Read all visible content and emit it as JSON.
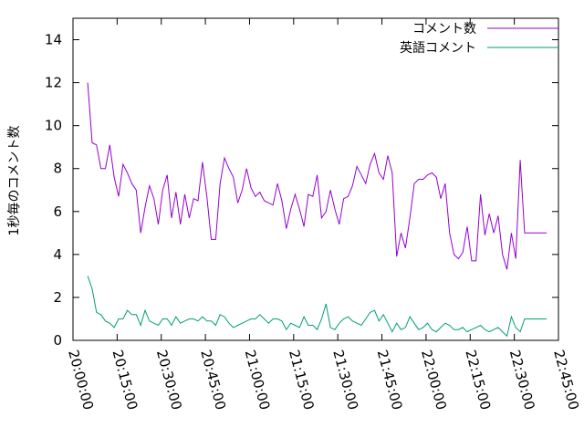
{
  "chart_data": {
    "type": "line",
    "title": "",
    "xlabel": "",
    "ylabel": "1秒毎のコメント数",
    "ylim": [
      0,
      15
    ],
    "yticks": [
      0,
      2,
      4,
      6,
      8,
      10,
      12,
      14
    ],
    "x_range": [
      "20:00:00",
      "22:45:00"
    ],
    "x_ticks": [
      "20:00:00",
      "20:15:00",
      "20:30:00",
      "20:45:00",
      "21:00:00",
      "21:15:00",
      "21:30:00",
      "21:45:00",
      "22:00:00",
      "22:15:00",
      "22:30:00",
      "22:45:00"
    ],
    "grid": false,
    "legend_position": "top-right",
    "x": [
      "20:05:00",
      "20:06:30",
      "20:08:00",
      "20:09:30",
      "20:11:00",
      "20:12:30",
      "20:14:00",
      "20:15:30",
      "20:17:00",
      "20:18:30",
      "20:20:00",
      "20:21:30",
      "20:23:00",
      "20:24:30",
      "20:26:00",
      "20:27:30",
      "20:29:00",
      "20:30:30",
      "20:32:00",
      "20:33:30",
      "20:35:00",
      "20:36:30",
      "20:38:00",
      "20:39:30",
      "20:41:00",
      "20:42:30",
      "20:44:00",
      "20:45:30",
      "20:47:00",
      "20:48:30",
      "20:50:00",
      "20:51:30",
      "20:53:00",
      "20:54:30",
      "20:56:00",
      "20:57:30",
      "20:59:00",
      "21:00:30",
      "21:02:00",
      "21:03:30",
      "21:05:00",
      "21:06:30",
      "21:08:00",
      "21:09:30",
      "21:11:00",
      "21:12:30",
      "21:14:00",
      "21:15:30",
      "21:17:00",
      "21:18:30",
      "21:20:00",
      "21:21:30",
      "21:23:00",
      "21:24:30",
      "21:26:00",
      "21:27:30",
      "21:29:00",
      "21:30:30",
      "21:32:00",
      "21:33:30",
      "21:35:00",
      "21:36:30",
      "21:38:00",
      "21:39:30",
      "21:41:00",
      "21:42:30",
      "21:44:00",
      "21:45:30",
      "21:47:00",
      "21:48:30",
      "21:50:00",
      "21:51:30",
      "21:53:00",
      "21:54:30",
      "21:56:00",
      "21:57:30",
      "21:59:00",
      "22:00:30",
      "22:02:00",
      "22:03:30",
      "22:05:00",
      "22:06:30",
      "22:08:00",
      "22:09:30",
      "22:11:00",
      "22:12:30",
      "22:14:00",
      "22:15:30",
      "22:17:00",
      "22:18:30",
      "22:20:00",
      "22:21:30",
      "22:23:00",
      "22:24:30",
      "22:26:00",
      "22:27:30",
      "22:29:00",
      "22:30:30",
      "22:32:00",
      "22:33:30",
      "22:35:00",
      "22:36:30",
      "22:38:00",
      "22:39:30",
      "22:41:00"
    ],
    "series": [
      {
        "name": "コメント数",
        "color": "#9400d3",
        "values": [
          12.0,
          9.2,
          9.1,
          8.0,
          8.0,
          9.1,
          7.6,
          6.7,
          8.2,
          7.8,
          7.3,
          7.0,
          5.0,
          6.2,
          7.2,
          6.6,
          5.4,
          7.0,
          7.7,
          5.7,
          6.9,
          5.4,
          6.8,
          5.7,
          6.6,
          6.5,
          8.3,
          6.7,
          4.7,
          4.7,
          7.3,
          8.5,
          8.0,
          7.6,
          6.4,
          7.0,
          8.0,
          7.1,
          6.7,
          6.9,
          6.5,
          6.4,
          6.3,
          7.3,
          6.5,
          5.2,
          6.1,
          6.8,
          6.1,
          5.3,
          6.8,
          6.7,
          7.7,
          5.7,
          6.0,
          7.0,
          6.1,
          5.4,
          6.6,
          6.7,
          7.2,
          8.1,
          7.7,
          7.3,
          8.2,
          8.7,
          7.8,
          7.5,
          8.6,
          7.8,
          3.9,
          5.0,
          4.3,
          5.7,
          7.3,
          7.5,
          7.5,
          7.7,
          7.8,
          7.6,
          6.6,
          7.3,
          5.0,
          4.0,
          3.8,
          4.1,
          5.3,
          3.7,
          3.7,
          6.8,
          4.9,
          5.9,
          5.0,
          5.8,
          4.0,
          3.3,
          5.0,
          3.8,
          8.4,
          5.0,
          5.0,
          5.0,
          5.0,
          5.0,
          5.0
        ]
      },
      {
        "name": "英語コメント",
        "color": "#009e73",
        "values": [
          3.0,
          2.4,
          1.3,
          1.2,
          0.9,
          0.8,
          0.6,
          1.0,
          1.0,
          1.4,
          1.2,
          1.2,
          0.7,
          1.4,
          0.9,
          0.8,
          0.7,
          1.0,
          1.0,
          0.7,
          1.1,
          0.8,
          0.9,
          1.0,
          1.0,
          0.9,
          1.1,
          0.9,
          0.9,
          0.7,
          1.2,
          1.1,
          0.8,
          0.6,
          0.7,
          0.8,
          0.9,
          1.0,
          1.0,
          1.2,
          1.0,
          0.8,
          1.0,
          1.0,
          0.9,
          0.5,
          0.8,
          0.7,
          0.6,
          1.1,
          0.7,
          0.7,
          0.5,
          1.0,
          1.7,
          0.6,
          0.5,
          0.8,
          1.0,
          1.1,
          0.9,
          0.8,
          0.7,
          1.0,
          1.3,
          1.4,
          0.9,
          1.2,
          0.8,
          0.4,
          0.8,
          0.5,
          0.6,
          1.1,
          0.8,
          0.5,
          0.6,
          0.8,
          0.5,
          0.4,
          0.6,
          0.8,
          0.7,
          0.5,
          0.5,
          0.6,
          0.4,
          0.5,
          0.6,
          0.7,
          0.5,
          0.4,
          0.5,
          0.6,
          0.4,
          0.2,
          1.1,
          0.6,
          0.4,
          1.0,
          1.0,
          1.0,
          1.0,
          1.0,
          1.0
        ]
      }
    ]
  }
}
